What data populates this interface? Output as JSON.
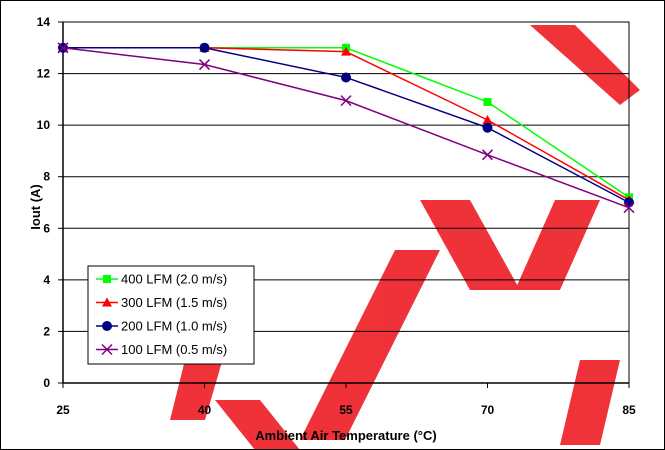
{
  "chart_data": {
    "type": "line",
    "title": "",
    "xlabel": "Ambient Air Temperature (°C)",
    "ylabel": "Iout (A)",
    "x": [
      25,
      40,
      55,
      70,
      85
    ],
    "xlim": [
      25,
      85
    ],
    "ylim": [
      0,
      14
    ],
    "xticks": [
      "25",
      "40",
      "55",
      "70",
      "85"
    ],
    "yticks": [
      "0",
      "2",
      "4",
      "6",
      "8",
      "10",
      "12",
      "14"
    ],
    "grid": "horizontal",
    "legend": "bottom-left",
    "series": [
      {
        "name": "400 LFM (2.0 m/s)",
        "marker": "square",
        "color": "#00ff00",
        "values": [
          13.0,
          13.0,
          13.0,
          10.9,
          7.2
        ]
      },
      {
        "name": "300 LFM (1.5 m/s)",
        "marker": "triangle",
        "color": "#ff0000",
        "values": [
          13.0,
          13.0,
          12.85,
          10.2,
          7.1
        ]
      },
      {
        "name": "200 LFM (1.0 m/s)",
        "marker": "circle",
        "color": "#000080",
        "values": [
          13.0,
          13.0,
          11.85,
          9.9,
          7.0
        ]
      },
      {
        "name": "100 LFM (0.5 m/s)",
        "marker": "x",
        "color": "#800080",
        "values": [
          13.0,
          12.35,
          10.95,
          8.85,
          6.8
        ]
      }
    ]
  }
}
